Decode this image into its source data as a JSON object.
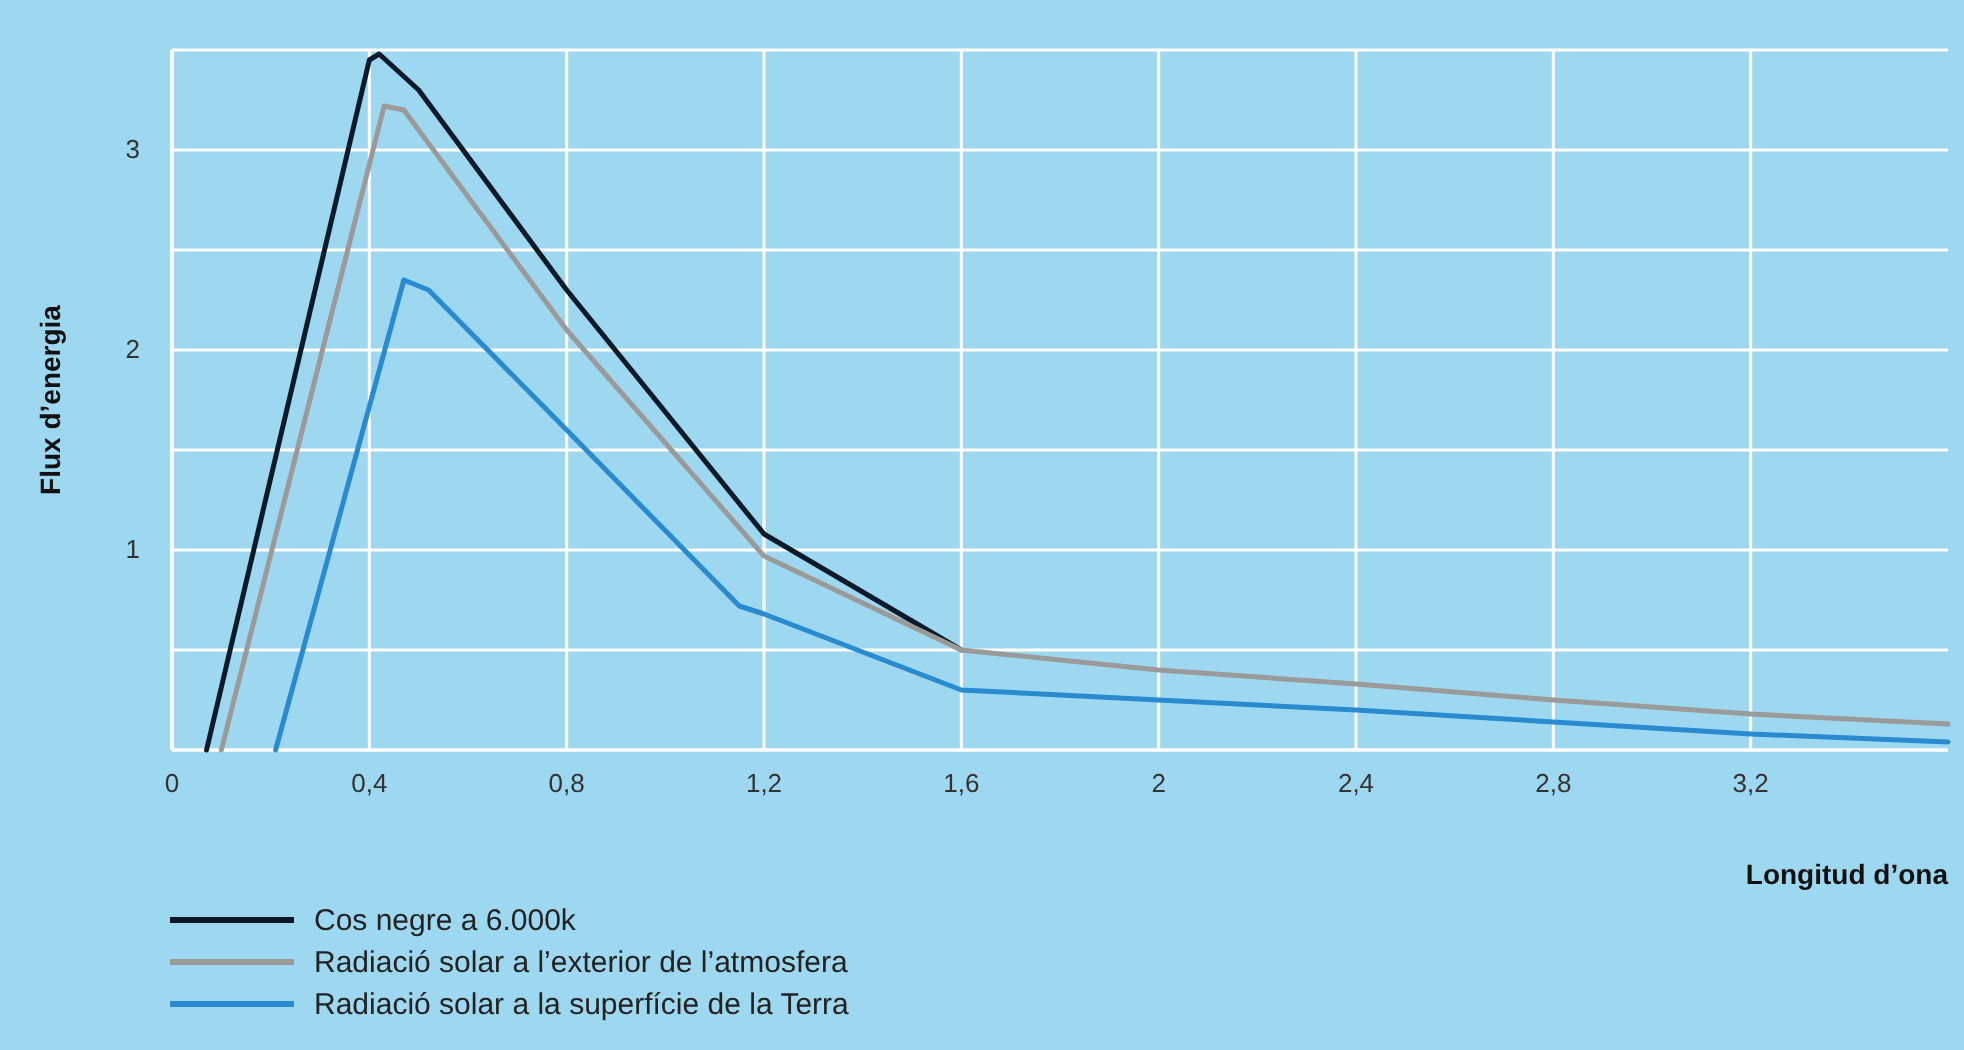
{
  "chart_data": {
    "type": "line",
    "xlabel": "Longitud d’ona",
    "ylabel": "Flux d’energia",
    "xlim": [
      0,
      3.6
    ],
    "xticks": [
      0,
      {
        "value": 0.4,
        "label": "0,4"
      },
      {
        "value": 0.8,
        "label": "0,8"
      },
      {
        "value": 1.2,
        "label": "1,2"
      },
      {
        "value": 1.6,
        "label": "1,6"
      },
      2,
      {
        "value": 2.4,
        "label": "2,4"
      },
      {
        "value": 2.8,
        "label": "2,8"
      },
      {
        "value": 3.2,
        "label": "3,2"
      }
    ],
    "ylim": [
      0,
      3.5
    ],
    "yticks": [
      {
        "value": 0.5,
        "label": null
      },
      1,
      {
        "value": 1.5,
        "label": null
      },
      2,
      {
        "value": 2.5,
        "label": null
      },
      3,
      {
        "value": 3.5,
        "label": null
      }
    ],
    "grid": true,
    "legend": "bottom left",
    "line_style": "solid",
    "marker": "none",
    "series": [
      {
        "name": "Cos negre a 6.000k",
        "color": "#0a1a2a",
        "x": [
          0.07,
          0.4,
          0.42,
          0.5,
          0.8,
          1.2,
          1.6
        ],
        "values": [
          0,
          3.45,
          3.48,
          3.3,
          2.3,
          1.08,
          0.5
        ]
      },
      {
        "name": "Radiació solar a l’exterior de l’atmosfera",
        "color": "#9a9a9a",
        "x": [
          0.1,
          0.43,
          0.47,
          0.8,
          1.2,
          1.6,
          2,
          2.4,
          2.8,
          3.2,
          3.6
        ],
        "values": [
          0,
          3.22,
          3.2,
          2.1,
          0.97,
          0.5,
          0.4,
          0.33,
          0.25,
          0.18,
          0.13
        ]
      },
      {
        "name": "Radiació solar a la superfície de la Terra",
        "color": "#2a8ad0",
        "x": [
          0.21,
          0.47,
          0.52,
          0.8,
          1.15,
          1.2,
          1.6,
          2,
          2.4,
          2.8,
          3.2,
          3.6
        ],
        "values": [
          0,
          2.35,
          2.3,
          1.6,
          0.72,
          0.68,
          0.3,
          0.25,
          0.2,
          0.14,
          0.08,
          0.04
        ]
      }
    ]
  }
}
